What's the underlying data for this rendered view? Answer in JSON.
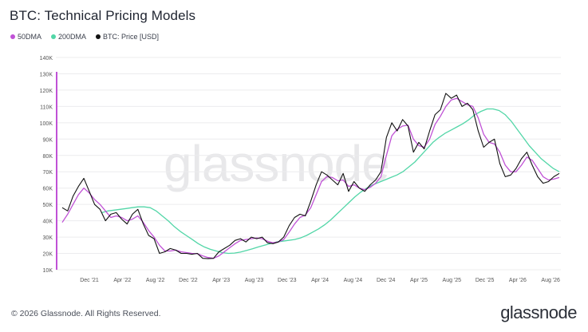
{
  "header": {
    "title": "BTC: Technical Pricing Models"
  },
  "legend": [
    {
      "label": "50DMA",
      "color": "#c052d6"
    },
    {
      "label": "200DMA",
      "color": "#52d6a7"
    },
    {
      "label": "BTC: Price [USD]",
      "color": "#111111"
    }
  ],
  "watermark": "glassnode",
  "footer": {
    "copyright": "© 2026 Glassnode. All Rights Reserved.",
    "brand": "glassnode"
  },
  "chart_data": {
    "type": "line",
    "y_ticks": [
      "10K",
      "20K",
      "30K",
      "40K",
      "50K",
      "60K",
      "70K",
      "80K",
      "90K",
      "100K",
      "110K",
      "120K",
      "130K",
      "140K"
    ],
    "x_ticks": [
      "Dec '21",
      "Apr '22",
      "Aug '22",
      "Dec '22",
      "Apr '23",
      "Aug '23",
      "Dec '23",
      "Apr '24",
      "Aug '24",
      "Dec '24",
      "Apr '25",
      "Aug '25",
      "Dec '25",
      "Apr '26",
      "Aug '26"
    ],
    "ylim": [
      10000,
      140000
    ],
    "grid": true,
    "legend_placement": "top-left",
    "series": [
      {
        "name": "BTC: Price [USD]",
        "color": "#111111",
        "values": [
          48000,
          46000,
          55000,
          61000,
          66000,
          58000,
          50000,
          47000,
          40000,
          44000,
          45000,
          41000,
          38000,
          44000,
          47000,
          38000,
          31000,
          29000,
          20000,
          21000,
          23000,
          22000,
          20000,
          20000,
          19500,
          20000,
          17000,
          16800,
          17000,
          21000,
          23000,
          25000,
          28000,
          29000,
          27000,
          30000,
          29000,
          30000,
          26500,
          26000,
          27000,
          30000,
          37000,
          42000,
          44000,
          43000,
          52000,
          62000,
          70000,
          68000,
          65000,
          62000,
          69000,
          58000,
          64000,
          60000,
          58000,
          62000,
          65000,
          70000,
          91000,
          100000,
          95000,
          102000,
          98000,
          82000,
          88000,
          84000,
          95000,
          105000,
          108000,
          118000,
          115000,
          117000,
          110000,
          112000,
          108000,
          95000,
          85000,
          88000,
          90000,
          75000,
          67000,
          68000,
          72000,
          78000,
          82000,
          74000,
          67000,
          63000,
          64000,
          67000,
          69000
        ],
        "x_start": 0,
        "x_end": 1
      },
      {
        "name": "50DMA",
        "color": "#c052d6",
        "values": [
          39000,
          44000,
          50000,
          56000,
          60000,
          57000,
          53000,
          50000,
          46000,
          42000,
          43000,
          42000,
          40000,
          41000,
          43000,
          39000,
          34000,
          30000,
          25000,
          21500,
          21500,
          22000,
          21000,
          20500,
          20000,
          19800,
          18500,
          17500,
          17000,
          18500,
          21000,
          23500,
          26000,
          28000,
          28500,
          29000,
          29500,
          29000,
          27500,
          26500,
          27000,
          28500,
          33000,
          38000,
          42000,
          43500,
          48000,
          56000,
          64000,
          67000,
          66500,
          64500,
          65000,
          61000,
          62000,
          60000,
          59000,
          60500,
          63000,
          67000,
          80000,
          92000,
          96000,
          98000,
          98500,
          90000,
          86000,
          85000,
          90000,
          99000,
          104000,
          110000,
          114000,
          115000,
          113000,
          111000,
          110000,
          103000,
          93000,
          88000,
          87000,
          82000,
          74000,
          70000,
          70000,
          74000,
          79000,
          77000,
          72000,
          67000,
          65000,
          65500,
          66500
        ],
        "x_start": 0,
        "x_end": 1
      },
      {
        "name": "200DMA",
        "color": "#52d6a7",
        "values": [
          45000,
          46000,
          46500,
          47000,
          47500,
          48000,
          48500,
          48500,
          48000,
          46000,
          43000,
          40000,
          36500,
          33500,
          31000,
          28500,
          26000,
          24000,
          22500,
          21500,
          20500,
          20000,
          20200,
          20800,
          21800,
          22800,
          24000,
          25000,
          26000,
          27000,
          27500,
          28000,
          28500,
          29500,
          31000,
          33000,
          35000,
          37500,
          40500,
          44000,
          47500,
          51000,
          54500,
          57500,
          60000,
          62000,
          63500,
          65000,
          66500,
          68000,
          70000,
          73000,
          76000,
          80000,
          84000,
          88000,
          91000,
          93500,
          95500,
          97500,
          99500,
          102000,
          105000,
          107000,
          108500,
          108500,
          107500,
          105000,
          101000,
          96000,
          91000,
          86000,
          82000,
          78000,
          75000,
          72000,
          70000
        ],
        "x_start": 0.08,
        "x_end": 1
      }
    ]
  }
}
